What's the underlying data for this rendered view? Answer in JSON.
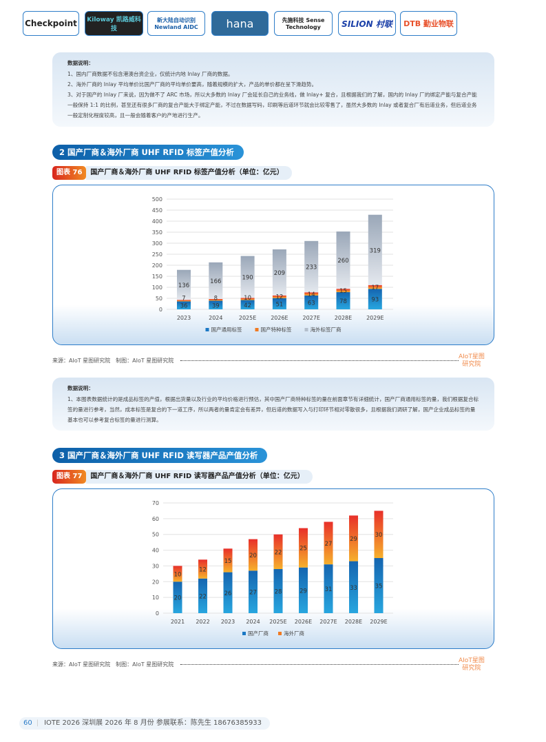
{
  "logos": [
    "Checkpoint",
    "Kiloway 凯路威科技",
    "新大陆自动识别 Newland AIDC",
    "hana",
    "先施科技 Sense Technology",
    "SILION 村联",
    "DTB 勤业物联"
  ],
  "note1": {
    "heading": "数据说明：",
    "lines": [
      "1、国内厂商数据不包含港澳台资企业，仅统计内地 Inlay 厂商的数据。",
      "2、海外厂商的 Inlay 平均单价比国产厂商的平均单价要高，随着规模的扩大，产品的单价都在呈下滑趋势。",
      "3、对于国产的 Inlay 厂来说，因为做不了 ARC 市场，所以大多数的 Inlay 厂会延长自己的业务线，做 Inlay+ 复合，且根据我们的了解，国内的 Inlay 厂的绑定产能与复合产能一般保持 1:1 的比例，甚至还有很多厂商的复合产能大于绑定产能，不过在数据写码，印刷等后道环节就会比较零售了，虽然大多数的 Inlay 或者复合厂有后道业务，但后道业务一般定制化程度较高，且一般会随着客户的产地进行生产。"
    ]
  },
  "section2": "2  国产厂商＆海外厂商 UHF RFID 标签产值分析",
  "fig76": {
    "tag": "图表 76",
    "title": "国产厂商＆海外厂商 UHF RFID 标签产值分析（单位：亿元）"
  },
  "source1": "来源：AIoT 星图研究院　制图：AIoT 星图研究院",
  "watermark": {
    "top": "AIoT星图",
    "bottom": "研究院"
  },
  "note2": {
    "heading": "数据说明：",
    "lines": [
      "1、本图表数据统计的是成品标签的产值，根据出货量以及行业的平均价格进行预估，其中国产厂商特种标签的量在前面章节有详细统计，国产厂商通用标签的量，我们根据复合标签的量进行参考，当然，成本标签是复合的下一道工序，所以两者的量肯定会有差异，但后道的数据写入与打印环节相对零散很多，且根据我们调研了解，国产企业成品标签的量基本也可以参考复合标签的量进行测算。"
    ]
  },
  "section3": "3  国产厂商＆海外厂商 UHF RFID 读写器产品产值分析",
  "fig77": {
    "tag": "图表 77",
    "title": "国产厂商＆海外厂商 UHF RFID 读写器产品产值分析（单位：亿元）"
  },
  "source2": "来源：AIoT 星图研究院　制图：AIoT 星图研究院",
  "footer": {
    "page": "60",
    "text": "IOTE 2026 深圳展 2026 年 8 月份  参展联系：陈先生 18676385933"
  },
  "chart_data": [
    {
      "type": "bar",
      "stacked": true,
      "categories": [
        "2023",
        "2024",
        "2025E",
        "2026E",
        "2027E",
        "2028E",
        "2029E"
      ],
      "series": [
        {
          "name": "国产通用标签",
          "values": [
            36,
            39,
            42,
            51,
            63,
            78,
            93
          ],
          "color": "#1b78c4"
        },
        {
          "name": "国产特种标签",
          "values": [
            7,
            8,
            10,
            12,
            14,
            15,
            17
          ],
          "color": "#f07a22"
        },
        {
          "name": "海外标签厂商",
          "values": [
            136,
            166,
            190,
            209,
            233,
            260,
            319
          ],
          "color": "#b4bfcc"
        }
      ],
      "ylim": [
        0,
        500
      ],
      "yticks": [
        0,
        50,
        100,
        150,
        200,
        250,
        300,
        350,
        400,
        450,
        500
      ],
      "grid": true,
      "legend": "bottom"
    },
    {
      "type": "bar",
      "stacked": true,
      "categories": [
        "2021",
        "2022",
        "2023",
        "2024",
        "2025E",
        "2026E",
        "2027E",
        "2028E",
        "2029E"
      ],
      "series": [
        {
          "name": "国产厂商",
          "values": [
            20,
            22,
            26,
            27,
            28,
            29,
            31,
            33,
            35
          ],
          "color": "#1b78c4"
        },
        {
          "name": "海外厂商",
          "values": [
            10,
            12,
            15,
            20,
            22,
            25,
            27,
            29,
            30
          ],
          "color": "#f07a22"
        }
      ],
      "ylim": [
        0,
        70
      ],
      "yticks": [
        0,
        10,
        20,
        30,
        40,
        50,
        60,
        70
      ],
      "grid": true,
      "legend": "bottom"
    }
  ]
}
